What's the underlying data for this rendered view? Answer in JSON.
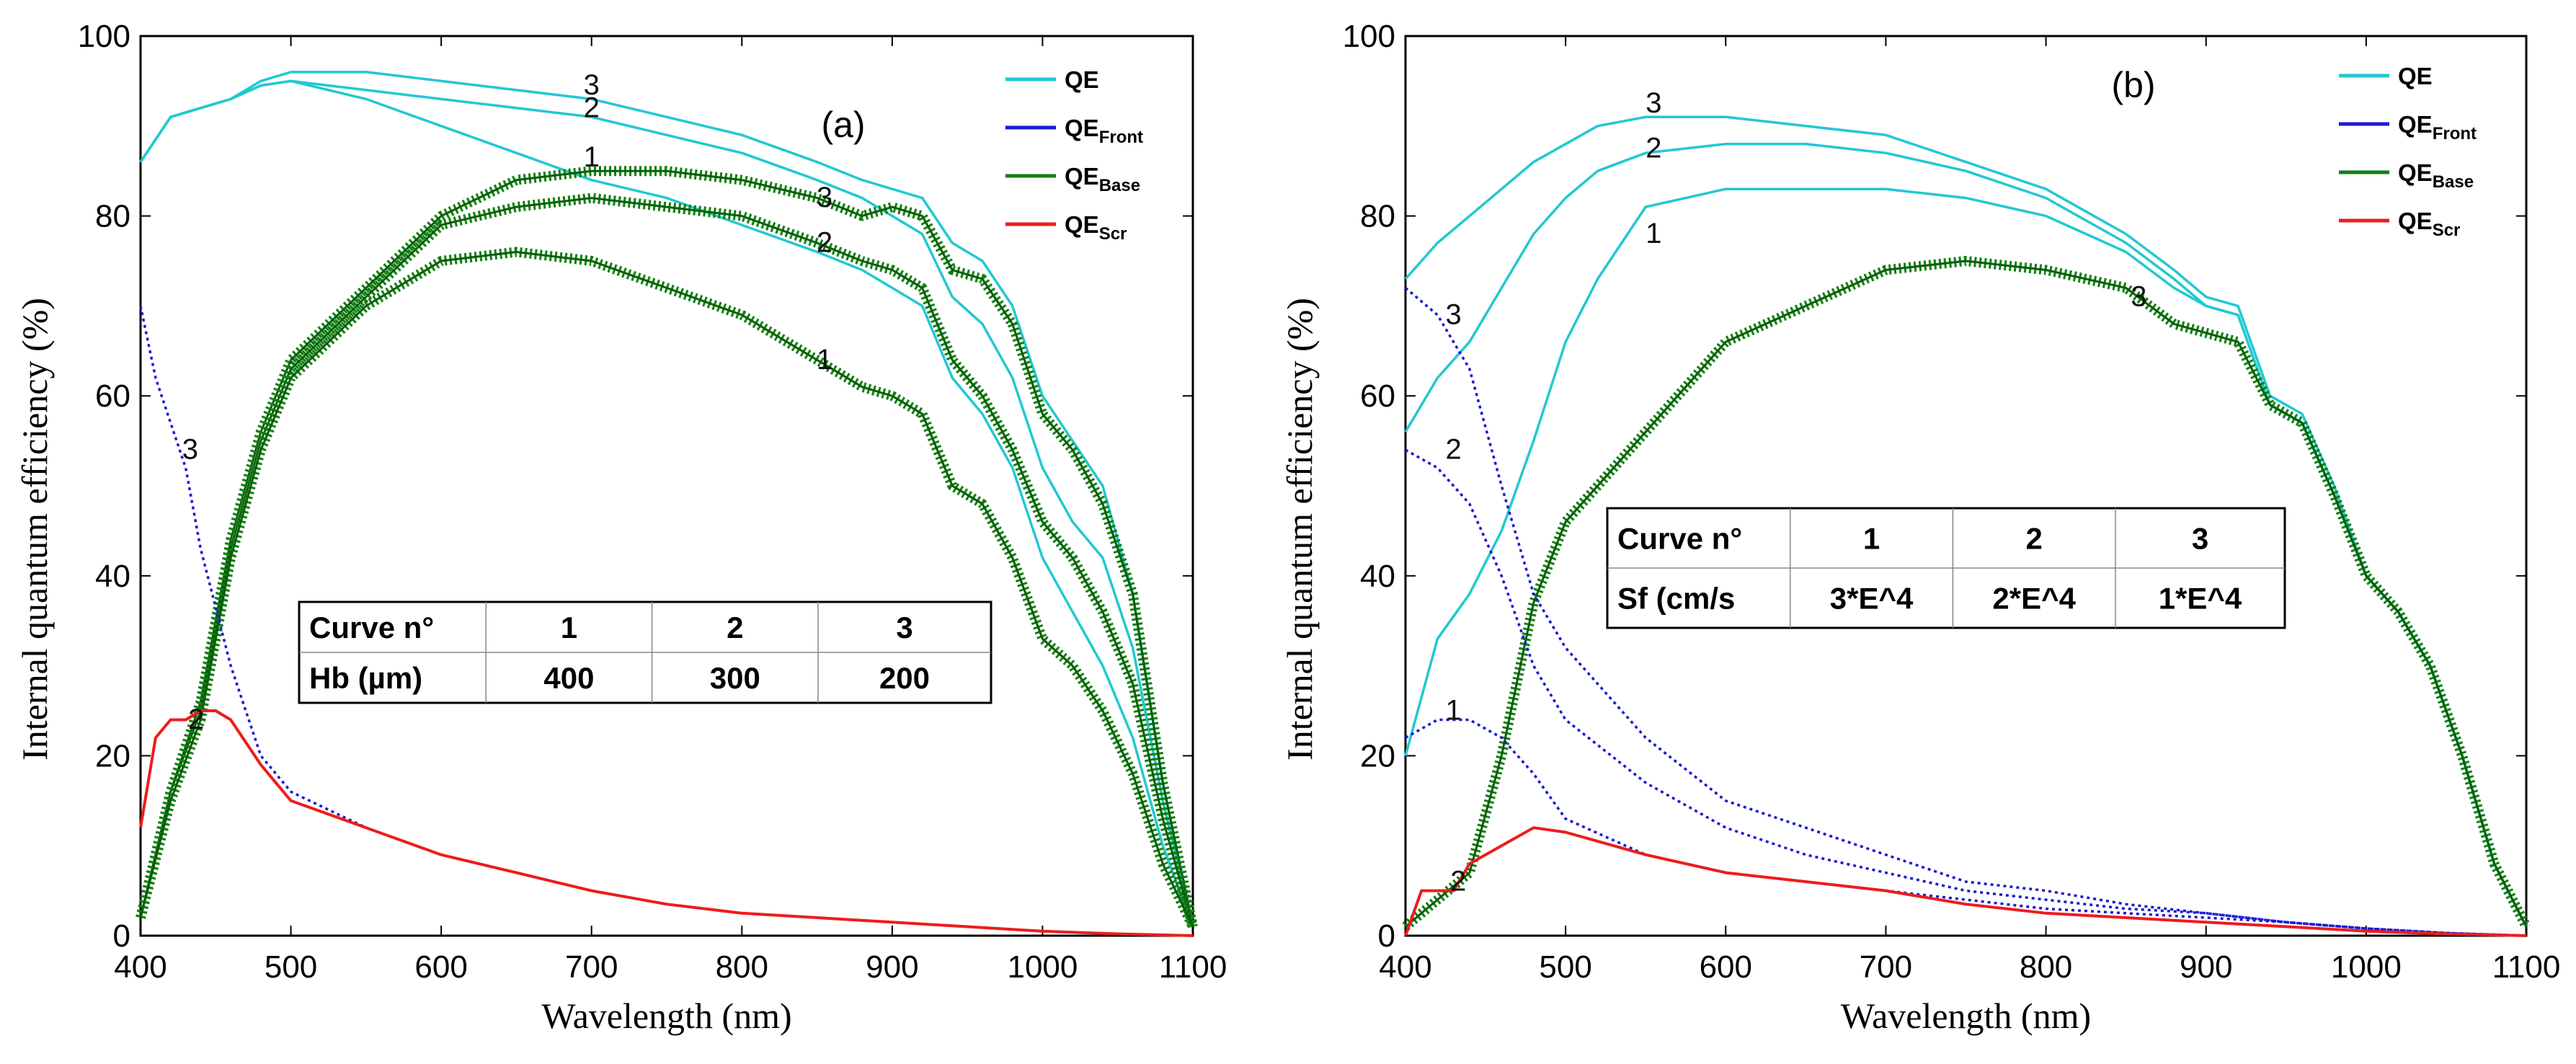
{
  "chart_data": [
    {
      "panel": "(a)",
      "type": "line",
      "xlabel": "Wavelength (nm)",
      "ylabel": "Internal quantum efficiency (%)",
      "xlim": [
        400,
        1100
      ],
      "ylim": [
        0,
        100
      ],
      "xticks": [
        400,
        500,
        600,
        700,
        800,
        900,
        1000,
        1100
      ],
      "yticks": [
        0,
        20,
        40,
        60,
        80,
        100
      ],
      "legend": [
        {
          "base": "QE",
          "sub": "",
          "color": "#22c8d2"
        },
        {
          "base": "QE",
          "sub": "Front",
          "color": "#1a1ad6"
        },
        {
          "base": "QE",
          "sub": "Base",
          "color": "#108010"
        },
        {
          "base": "QE",
          "sub": "Scr",
          "color": "#ee1c1c"
        }
      ],
      "table": {
        "rows": [
          [
            "Curve n°",
            "1",
            "2",
            "3"
          ],
          [
            "Hb (µm)",
            "400",
            "300",
            "200"
          ]
        ]
      },
      "series": [
        {
          "name": "QE 3",
          "kind": "QE",
          "label": "3",
          "label_at": [
            700,
            93.5
          ],
          "x": [
            400,
            420,
            440,
            460,
            480,
            500,
            550,
            600,
            650,
            700,
            750,
            800,
            850,
            880,
            900,
            920,
            940,
            960,
            980,
            1000,
            1020,
            1040,
            1060,
            1080,
            1100
          ],
          "y": [
            86,
            91,
            92,
            93,
            95,
            96,
            96,
            95,
            94,
            93,
            91,
            89,
            86,
            84,
            83,
            82,
            77,
            75,
            70,
            60,
            55,
            50,
            38,
            17,
            1
          ]
        },
        {
          "name": "QE 2",
          "kind": "QE",
          "label": "2",
          "label_at": [
            700,
            91
          ],
          "x": [
            400,
            420,
            440,
            460,
            480,
            500,
            550,
            600,
            650,
            700,
            750,
            800,
            850,
            880,
            900,
            920,
            940,
            960,
            980,
            1000,
            1020,
            1040,
            1060,
            1080,
            1100
          ],
          "y": [
            86,
            91,
            92,
            93,
            94.5,
            95,
            94,
            93,
            92,
            91,
            89,
            87,
            84,
            82,
            80,
            78,
            71,
            68,
            62,
            52,
            46,
            42,
            32,
            15,
            1
          ]
        },
        {
          "name": "QE 1",
          "kind": "QE",
          "label": "1",
          "label_at": [
            700,
            85.5
          ],
          "x": [
            400,
            420,
            440,
            460,
            480,
            500,
            550,
            600,
            650,
            700,
            750,
            800,
            850,
            880,
            900,
            920,
            940,
            960,
            980,
            1000,
            1020,
            1040,
            1060,
            1080,
            1100
          ],
          "y": [
            86,
            91,
            92,
            93,
            94.5,
            95,
            93,
            90,
            87,
            84,
            82,
            79,
            76,
            74,
            72,
            70,
            62,
            58,
            52,
            42,
            36,
            30,
            22,
            10,
            1
          ]
        },
        {
          "name": "QE_Base 3",
          "kind": "Base",
          "label": "3",
          "label_at": [
            855,
            81
          ],
          "x": [
            400,
            420,
            440,
            460,
            480,
            500,
            550,
            600,
            650,
            700,
            750,
            800,
            850,
            880,
            900,
            920,
            940,
            960,
            980,
            1000,
            1020,
            1040,
            1060,
            1080,
            1100
          ],
          "y": [
            2,
            16,
            26,
            44,
            56,
            64,
            72,
            80,
            84,
            85,
            85,
            84,
            82,
            80,
            81,
            80,
            74,
            73,
            68,
            58,
            54,
            48,
            38,
            17,
            1
          ]
        },
        {
          "name": "QE_Base 2",
          "kind": "Base",
          "label": "2",
          "label_at": [
            855,
            76
          ],
          "x": [
            400,
            420,
            440,
            460,
            480,
            500,
            550,
            600,
            650,
            700,
            750,
            800,
            850,
            880,
            900,
            920,
            940,
            960,
            980,
            1000,
            1020,
            1040,
            1060,
            1080,
            1100
          ],
          "y": [
            2,
            16,
            25,
            43,
            55,
            63,
            71,
            79,
            81,
            82,
            81,
            80,
            77,
            75,
            74,
            72,
            64,
            60,
            54,
            46,
            42,
            36,
            28,
            13,
            1
          ]
        },
        {
          "name": "QE_Base 1",
          "kind": "Base",
          "label": "1",
          "label_at": [
            855,
            63
          ],
          "x": [
            400,
            420,
            440,
            460,
            480,
            500,
            550,
            600,
            650,
            700,
            750,
            800,
            850,
            880,
            900,
            920,
            940,
            960,
            980,
            1000,
            1020,
            1040,
            1060,
            1080,
            1100
          ],
          "y": [
            2,
            15,
            24,
            42,
            54,
            62,
            70,
            75,
            76,
            75,
            72,
            69,
            64,
            61,
            60,
            58,
            50,
            48,
            42,
            33,
            30,
            25,
            18,
            8,
            1
          ]
        },
        {
          "name": "QE_Front",
          "kind": "Front",
          "label": "3",
          "label_at": [
            433,
            53
          ],
          "x": [
            400,
            410,
            420,
            430,
            440,
            460,
            480,
            500,
            550,
            600,
            650,
            700,
            750,
            800,
            850,
            900,
            950,
            1000,
            1050,
            1100
          ],
          "y": [
            70,
            62,
            57,
            52,
            43,
            30,
            20,
            16,
            12,
            9,
            7,
            5,
            3.5,
            2.5,
            2,
            1.5,
            1,
            0.5,
            0.2,
            0
          ]
        },
        {
          "name": "QE_Scr",
          "kind": "Scr",
          "label": "2",
          "label_at": [
            437,
            23
          ],
          "x": [
            400,
            410,
            420,
            430,
            440,
            450,
            460,
            480,
            500,
            550,
            600,
            650,
            700,
            750,
            800,
            850,
            900,
            950,
            1000,
            1050,
            1100
          ],
          "y": [
            12,
            22,
            24,
            24,
            25,
            25,
            24,
            19,
            15,
            12,
            9,
            7,
            5,
            3.5,
            2.5,
            2,
            1.5,
            1,
            0.5,
            0.2,
            0
          ]
        }
      ]
    },
    {
      "panel": "(b)",
      "type": "line",
      "xlabel": "Wavelength (nm)",
      "ylabel": "Internal quantum efficiency (%)",
      "xlim": [
        400,
        1100
      ],
      "ylim": [
        0,
        100
      ],
      "xticks": [
        400,
        500,
        600,
        700,
        800,
        900,
        1000,
        1100
      ],
      "yticks": [
        0,
        20,
        40,
        60,
        80,
        100
      ],
      "legend": [
        {
          "base": "QE",
          "sub": "",
          "color": "#22c8d2"
        },
        {
          "base": "QE",
          "sub": "Front",
          "color": "#1a1ad6"
        },
        {
          "base": "QE",
          "sub": "Base",
          "color": "#108010"
        },
        {
          "base": "QE",
          "sub": "Scr",
          "color": "#ee1c1c"
        }
      ],
      "table": {
        "rows": [
          [
            "Curve n°",
            "1",
            "2",
            "3"
          ],
          [
            "Sf (cm/s",
            "3*E^4",
            "2*E^4",
            "1*E^4"
          ]
        ]
      },
      "series": [
        {
          "name": "QE 3",
          "kind": "QE",
          "label": "3",
          "label_at": [
            555,
            91.5
          ],
          "x": [
            400,
            420,
            440,
            460,
            480,
            500,
            520,
            550,
            600,
            650,
            700,
            750,
            800,
            850,
            880,
            900,
            920,
            940,
            960,
            980,
            1000,
            1020,
            1040,
            1060,
            1080,
            1100
          ],
          "y": [
            73,
            77,
            80,
            83,
            86,
            88,
            90,
            91,
            91,
            90,
            89,
            86,
            83,
            78,
            74,
            71,
            70,
            60,
            58,
            50,
            40,
            36,
            30,
            20,
            8,
            1
          ]
        },
        {
          "name": "QE 2",
          "kind": "QE",
          "label": "2",
          "label_at": [
            555,
            86.5
          ],
          "x": [
            400,
            420,
            440,
            460,
            480,
            500,
            520,
            550,
            600,
            650,
            700,
            750,
            800,
            850,
            880,
            900,
            920,
            940,
            960,
            980,
            1000,
            1020,
            1040,
            1060,
            1080,
            1100
          ],
          "y": [
            56,
            62,
            66,
            72,
            78,
            82,
            85,
            87,
            88,
            88,
            87,
            85,
            82,
            77,
            73,
            70,
            69,
            59,
            57,
            49,
            40,
            36,
            30,
            20,
            8,
            1
          ]
        },
        {
          "name": "QE 1",
          "kind": "QE",
          "label": "1",
          "label_at": [
            555,
            77
          ],
          "x": [
            400,
            420,
            440,
            460,
            480,
            500,
            520,
            550,
            600,
            650,
            700,
            750,
            800,
            850,
            880,
            900,
            920,
            940,
            960,
            980,
            1000,
            1020,
            1040,
            1060,
            1080,
            1100
          ],
          "y": [
            20,
            33,
            38,
            45,
            55,
            66,
            73,
            81,
            83,
            83,
            83,
            82,
            80,
            76,
            72,
            70,
            69,
            59,
            57,
            49,
            40,
            36,
            30,
            20,
            8,
            1
          ]
        },
        {
          "name": "QE_Base",
          "kind": "Base",
          "label": "3",
          "label_at": [
            858,
            70
          ],
          "x": [
            400,
            420,
            440,
            460,
            480,
            500,
            520,
            550,
            600,
            650,
            700,
            750,
            800,
            850,
            880,
            900,
            920,
            940,
            960,
            980,
            1000,
            1020,
            1040,
            1060,
            1080,
            1100
          ],
          "y": [
            1,
            4,
            7,
            20,
            37,
            46,
            50,
            56,
            66,
            70,
            74,
            75,
            74,
            72,
            68,
            67,
            66,
            59,
            57,
            49,
            40,
            36,
            30,
            20,
            8,
            1
          ]
        },
        {
          "name": "QE_Front 3",
          "kind": "Front",
          "label": "3",
          "label_at": [
            430,
            68
          ],
          "x": [
            400,
            420,
            440,
            460,
            480,
            500,
            550,
            600,
            650,
            700,
            750,
            800,
            850,
            900,
            950,
            1000,
            1050,
            1100
          ],
          "y": [
            72,
            69,
            63,
            50,
            38,
            32,
            22,
            15,
            12,
            9,
            6,
            5,
            3.5,
            2.5,
            1.5,
            0.8,
            0.3,
            0
          ]
        },
        {
          "name": "QE_Front 2",
          "kind": "Front",
          "label": "2",
          "label_at": [
            430,
            53
          ],
          "x": [
            400,
            420,
            440,
            460,
            480,
            500,
            550,
            600,
            650,
            700,
            750,
            800,
            850,
            900,
            950,
            1000,
            1050,
            1100
          ],
          "y": [
            54,
            52,
            48,
            40,
            30,
            24,
            17,
            12,
            9,
            7,
            5,
            4,
            3,
            2.5,
            1.5,
            0.8,
            0.3,
            0
          ]
        },
        {
          "name": "QE_Front 1",
          "kind": "Front",
          "label": "1",
          "label_at": [
            430,
            24
          ],
          "x": [
            400,
            420,
            440,
            460,
            480,
            500,
            550,
            600,
            650,
            700,
            750,
            800,
            850,
            900,
            950,
            1000,
            1050,
            1100
          ],
          "y": [
            22,
            24,
            24,
            22,
            18,
            13,
            9,
            7,
            6,
            5,
            4,
            3,
            2.5,
            2,
            1.5,
            0.8,
            0.3,
            0
          ]
        },
        {
          "name": "QE_Scr",
          "kind": "Scr",
          "label": "2",
          "label_at": [
            433,
            5
          ],
          "x": [
            400,
            410,
            420,
            430,
            440,
            460,
            480,
            500,
            550,
            600,
            650,
            700,
            750,
            800,
            850,
            900,
            950,
            1000,
            1050,
            1100
          ],
          "y": [
            0,
            5,
            5,
            5,
            8,
            10,
            12,
            11.5,
            9,
            7,
            6,
            5,
            3.5,
            2.5,
            2,
            1.5,
            1,
            0.5,
            0.2,
            0
          ]
        }
      ]
    }
  ]
}
